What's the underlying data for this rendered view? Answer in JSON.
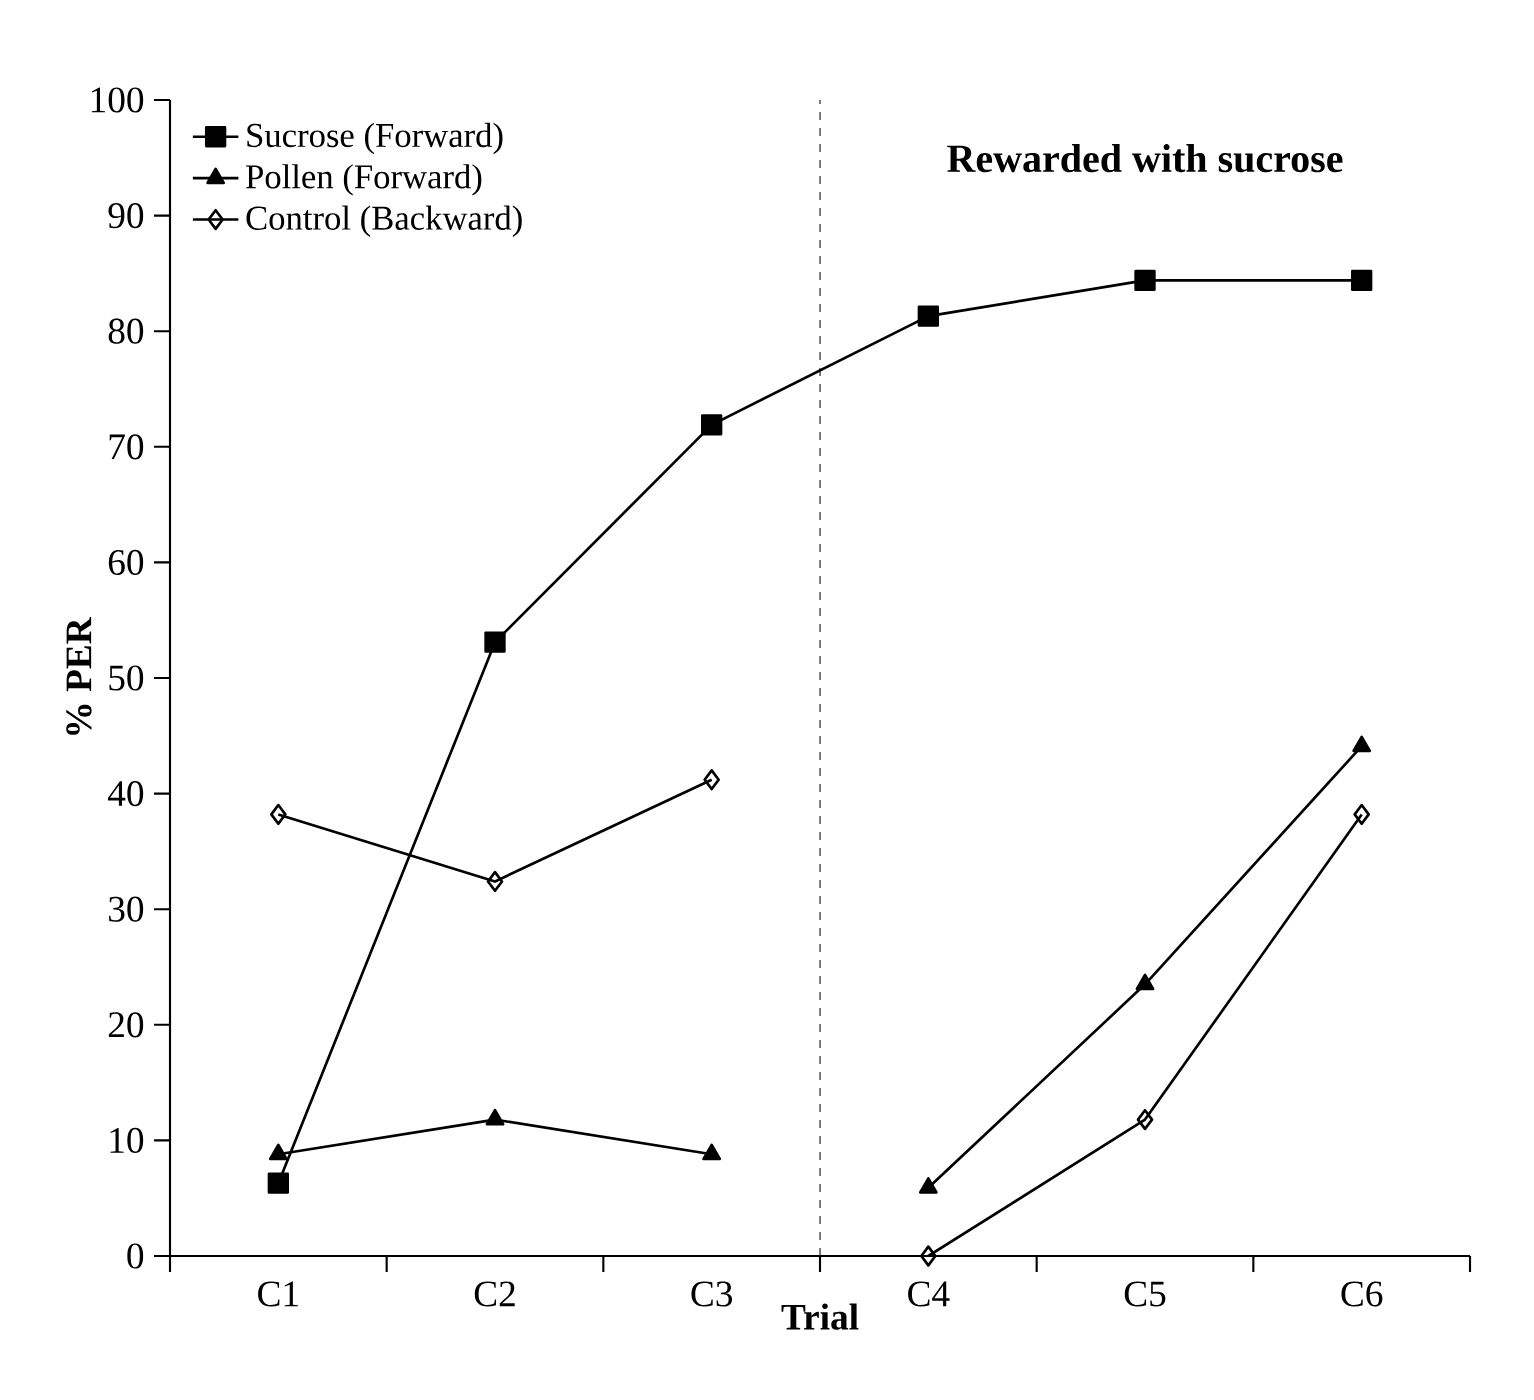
{
  "chart_data": {
    "type": "line",
    "xlabel": "Trial",
    "ylabel": "% PER",
    "categories": [
      "C1",
      "C2",
      "C3",
      "C4",
      "C5",
      "C6"
    ],
    "series": [
      {
        "name": "Sucrose (Forward)",
        "color": "#000000",
        "marker": "square",
        "values": [
          6.3,
          53.1,
          71.9,
          81.3,
          84.4,
          84.4
        ]
      },
      {
        "name": "Pollen (Forward)",
        "color": "#000000",
        "marker": "triangle",
        "values": [
          8.8,
          11.8,
          8.8,
          null,
          null,
          null
        ]
      },
      {
        "name": "Control (Backward)",
        "color": "#000000",
        "marker": "diamond",
        "values": [
          38.2,
          32.4,
          41.2,
          null,
          null,
          null
        ]
      },
      {
        "color": "#000000",
        "marker": "triangle",
        "values": [
          null,
          null,
          null,
          5.9,
          23.5,
          44.1
        ]
      },
      {
        "color": "#000000",
        "marker": "diamond",
        "values": [
          null,
          null,
          null,
          0,
          11.8,
          38.2
        ]
      }
    ],
    "ylim": [
      0,
      100
    ],
    "yticks": [
      0,
      10,
      20,
      30,
      40,
      50,
      60,
      70,
      80,
      90,
      100
    ],
    "annotations": [
      "Rewarded with sucrose"
    ],
    "legend": "top left",
    "grid": false,
    "line_style": "solid"
  }
}
